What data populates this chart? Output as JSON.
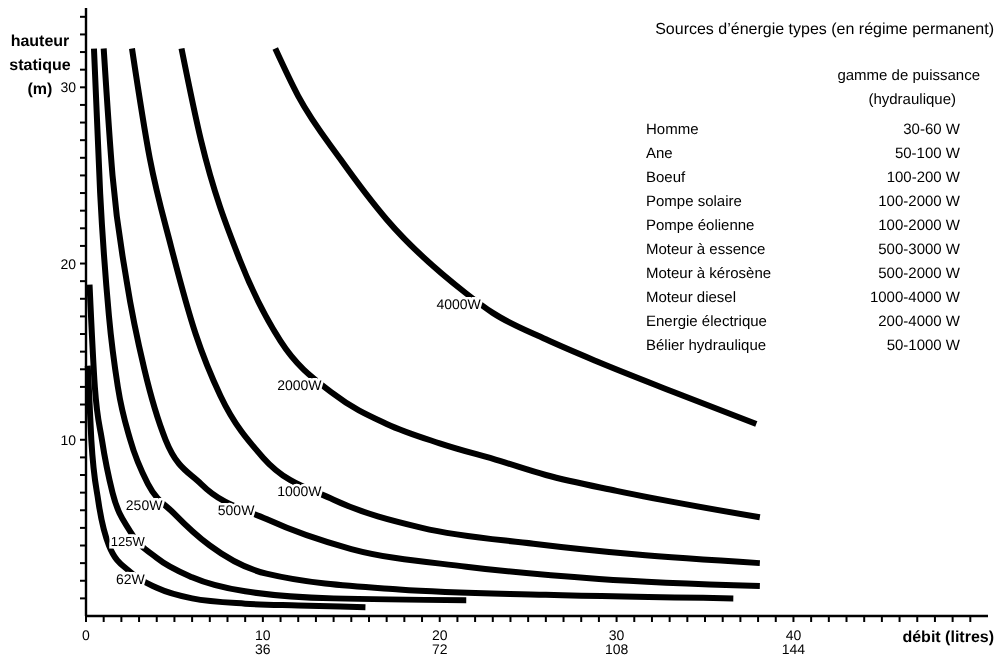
{
  "chart_data": {
    "type": "line",
    "xlabel": "débit (litres)",
    "ylabel": "hauteur statique (m)",
    "xlim": [
      0,
      51
    ],
    "ylim": [
      0,
      34.5
    ],
    "xticks": [
      0,
      {
        "value": 1,
        "label": null
      },
      {
        "value": 2,
        "label": null
      },
      {
        "value": 3,
        "label": null
      },
      {
        "value": 4,
        "label": null
      },
      {
        "value": 5,
        "label": null
      },
      {
        "value": 6,
        "label": null
      },
      {
        "value": 7,
        "label": null
      },
      {
        "value": 8,
        "label": null
      },
      {
        "value": 9,
        "label": null
      },
      10,
      {
        "value": 11,
        "label": null
      },
      {
        "value": 12,
        "label": null
      },
      {
        "value": 13,
        "label": null
      },
      {
        "value": 14,
        "label": null
      },
      {
        "value": 15,
        "label": null
      },
      {
        "value": 16,
        "label": null
      },
      {
        "value": 17,
        "label": null
      },
      {
        "value": 18,
        "label": null
      },
      {
        "value": 19,
        "label": null
      },
      20,
      {
        "value": 21,
        "label": null
      },
      {
        "value": 22,
        "label": null
      },
      {
        "value": 23,
        "label": null
      },
      {
        "value": 24,
        "label": null
      },
      {
        "value": 25,
        "label": null
      },
      {
        "value": 26,
        "label": null
      },
      {
        "value": 27,
        "label": null
      },
      {
        "value": 28,
        "label": null
      },
      {
        "value": 29,
        "label": null
      },
      30,
      {
        "value": 31,
        "label": null
      },
      {
        "value": 32,
        "label": null
      },
      {
        "value": 33,
        "label": null
      },
      {
        "value": 34,
        "label": null
      },
      {
        "value": 35,
        "label": null
      },
      {
        "value": 36,
        "label": null
      },
      {
        "value": 37,
        "label": null
      },
      {
        "value": 38,
        "label": null
      },
      {
        "value": 39,
        "label": null
      },
      40,
      {
        "value": 41,
        "label": null
      },
      {
        "value": 42,
        "label": null
      },
      {
        "value": 43,
        "label": null
      },
      {
        "value": 44,
        "label": null
      },
      {
        "value": 45,
        "label": null
      },
      {
        "value": 46,
        "label": null
      },
      {
        "value": 47,
        "label": null
      },
      {
        "value": 48,
        "label": null
      },
      {
        "value": 49,
        "label": null
      },
      {
        "value": 50,
        "label": null
      }
    ],
    "x2lim": [
      0,
      183.6
    ],
    "x2ticks": [
      36,
      72,
      108,
      144
    ],
    "yticks": [
      {
        "value": 1,
        "label": null
      },
      {
        "value": 2,
        "label": null
      },
      {
        "value": 3,
        "label": null
      },
      {
        "value": 4,
        "label": null
      },
      {
        "value": 5,
        "label": null
      },
      {
        "value": 6,
        "label": null
      },
      {
        "value": 7,
        "label": null
      },
      {
        "value": 8,
        "label": null
      },
      {
        "value": 9,
        "label": null
      },
      10,
      {
        "value": 11,
        "label": null
      },
      {
        "value": 12,
        "label": null
      },
      {
        "value": 13,
        "label": null
      },
      {
        "value": 14,
        "label": null
      },
      {
        "value": 15,
        "label": null
      },
      {
        "value": 16,
        "label": null
      },
      {
        "value": 17,
        "label": null
      },
      {
        "value": 18,
        "label": null
      },
      {
        "value": 19,
        "label": null
      },
      20,
      {
        "value": 21,
        "label": null
      },
      {
        "value": 22,
        "label": null
      },
      {
        "value": 23,
        "label": null
      },
      {
        "value": 24,
        "label": null
      },
      {
        "value": 25,
        "label": null
      },
      {
        "value": 26,
        "label": null
      },
      {
        "value": 27,
        "label": null
      },
      {
        "value": 28,
        "label": null
      },
      {
        "value": 29,
        "label": null
      },
      30,
      {
        "value": 31,
        "label": null
      },
      {
        "value": 32,
        "label": null
      },
      {
        "value": 33,
        "label": null
      },
      {
        "value": 34,
        "label": null
      }
    ],
    "grid": false,
    "marker": "none",
    "line_style": "solid",
    "series": [
      {
        "name": "62W",
        "color": "#000000",
        "x": [
          0.1,
          0.3,
          0.7,
          1.3,
          2.5,
          4,
          6,
          9,
          12,
          15.8
        ],
        "values": [
          14.2,
          10,
          6.5,
          4,
          2.5,
          1.6,
          1,
          0.7,
          0.6,
          0.5
        ]
      },
      {
        "name": "125W",
        "color": "#000000",
        "x": [
          0.2,
          0.5,
          0.9,
          1.5,
          2.5,
          4,
          6,
          9,
          14,
          21.5
        ],
        "values": [
          18.8,
          13,
          10,
          7,
          4.8,
          3.3,
          2.2,
          1.4,
          1,
          0.9
        ]
      },
      {
        "name": "250W",
        "color": "#000000",
        "x": [
          0.45,
          0.8,
          1.3,
          1.8,
          2.5,
          3.5,
          5,
          7,
          10.2,
          17.7,
          26,
          36.6
        ],
        "values": [
          32.2,
          24,
          17,
          13,
          10,
          7.5,
          5.8,
          4,
          2.4,
          1.5,
          1.2,
          1
        ]
      },
      {
        "name": "500W",
        "color": "#000000",
        "x": [
          1,
          1.5,
          2.3,
          3.3,
          4.5,
          6.5,
          10.2,
          15,
          21.5,
          29,
          38.1
        ],
        "values": [
          32.2,
          25,
          19,
          14,
          10,
          7.5,
          5.5,
          3.8,
          2.8,
          2.1,
          1.7
        ]
      },
      {
        "name": "1000W",
        "color": "#000000",
        "x": [
          2.6,
          3.6,
          4.8,
          6.2,
          7.6,
          10,
          14,
          19,
          25.3,
          31,
          38.1
        ],
        "values": [
          32.2,
          26,
          21,
          16,
          12.5,
          9,
          6.6,
          5,
          4.1,
          3.5,
          3
        ]
      },
      {
        "name": "2000W",
        "color": "#000000",
        "x": [
          5.4,
          6.5,
          8.7,
          11,
          14,
          17,
          20,
          23.4,
          26,
          30,
          38.1
        ],
        "values": [
          32.2,
          27,
          20.2,
          15.6,
          12.6,
          10.9,
          9.8,
          8.8,
          8,
          7.1,
          5.6
        ]
      },
      {
        "name": "4000W",
        "color": "#000000",
        "x": [
          10.7,
          12,
          14.4,
          17,
          21.5,
          23,
          26,
          29,
          33,
          37.9
        ],
        "values": [
          32.2,
          29.5,
          25.9,
          22.5,
          18.3,
          17.2,
          15.7,
          14.4,
          12.8,
          10.9
        ]
      }
    ],
    "annotations": [
      "Sources d’énergie types (en régime permanent)",
      "gamme de puissance",
      "(hydraulique)",
      "Homme",
      "30-60 W",
      "Ane",
      "50-100 W",
      "Boeuf",
      "100-200 W",
      "Pompe solaire",
      "100-2000 W",
      "Pompe éolienne",
      "100-2000 W",
      "Moteur à essence",
      "500-3000 W",
      "Moteur à kérosène",
      "500-2000 W",
      "Moteur diesel",
      "1000-4000 W",
      "Energie électrique",
      "200-4000 W",
      "Bélier hydraulique",
      "50-1000 W"
    ]
  }
}
